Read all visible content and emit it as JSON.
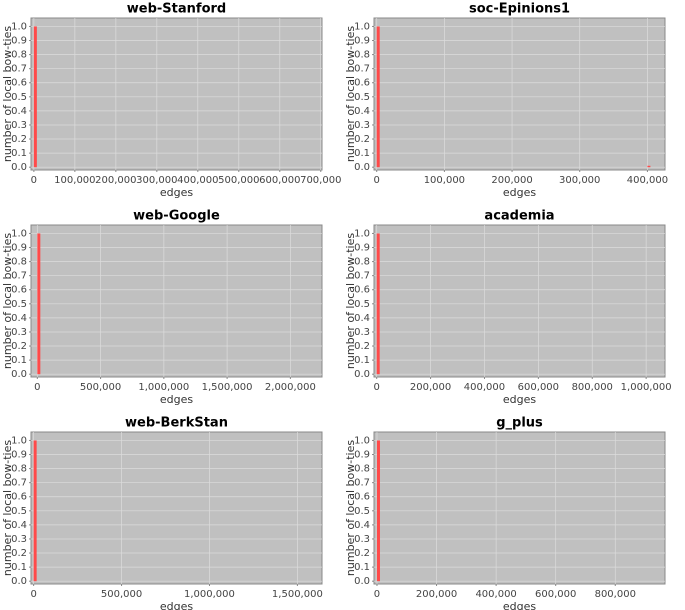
{
  "chart_data": [
    {
      "type": "bar",
      "title": "web-Stanford",
      "x_label": "edges",
      "y_label": "number of local bow-ties",
      "color": "#ff4a4a",
      "grid": true,
      "x": [
        0
      ],
      "values": [
        1.0
      ],
      "xlim": [
        -7000,
        703000
      ],
      "xticks": [
        0,
        {
          "value": 100000,
          "label": "100,000"
        },
        {
          "value": 200000,
          "label": "200,000"
        },
        {
          "value": 300000,
          "label": "300,000"
        },
        {
          "value": 400000,
          "label": "400,000"
        },
        {
          "value": 500000,
          "label": "500,000"
        },
        {
          "value": 600000,
          "label": "600,000"
        },
        {
          "value": 700000,
          "label": "700,000"
        }
      ],
      "ylim": [
        -0.02,
        1.06
      ],
      "yticks": [
        {
          "value": 0,
          "label": "0.0"
        },
        0.1,
        0.2,
        0.3,
        0.4,
        0.5,
        0.6,
        0.7,
        0.8,
        0.9,
        {
          "value": 1,
          "label": "1.0"
        }
      ]
    },
    {
      "type": "bar",
      "title": "soc-Epinions1",
      "x_label": "edges",
      "y_label": "number of local bow-ties",
      "color": "#ff4a4a",
      "grid": true,
      "x": [
        0,
        400000
      ],
      "values": [
        1.0,
        0.01
      ],
      "xlim": [
        -4000,
        426000
      ],
      "xticks": [
        0,
        {
          "value": 100000,
          "label": "100,000"
        },
        {
          "value": 200000,
          "label": "200,000"
        },
        {
          "value": 300000,
          "label": "300,000"
        },
        {
          "value": 400000,
          "label": "400,000"
        }
      ],
      "ylim": [
        -0.02,
        1.06
      ],
      "yticks": [
        {
          "value": 0,
          "label": "0.0"
        },
        0.1,
        0.2,
        0.3,
        0.4,
        0.5,
        0.6,
        0.7,
        0.8,
        0.9,
        {
          "value": 1,
          "label": "1.0"
        }
      ]
    },
    {
      "type": "bar",
      "title": "web-Google",
      "x_label": "edges",
      "y_label": "number of local bow-ties",
      "color": "#ff4a4a",
      "grid": true,
      "x": [
        0
      ],
      "values": [
        1.0
      ],
      "xlim": [
        -50000,
        2250000
      ],
      "xticks": [
        0,
        {
          "value": 500000,
          "label": "500,000"
        },
        {
          "value": 1000000,
          "label": "1,000,000"
        },
        {
          "value": 1500000,
          "label": "1,500,000"
        },
        {
          "value": 2000000,
          "label": "2,000,000"
        }
      ],
      "ylim": [
        -0.02,
        1.06
      ],
      "yticks": [
        {
          "value": 0,
          "label": "0.0"
        },
        0.1,
        0.2,
        0.3,
        0.4,
        0.5,
        0.6,
        0.7,
        0.8,
        0.9,
        {
          "value": 1,
          "label": "1.0"
        }
      ]
    },
    {
      "type": "bar",
      "title": "academia",
      "x_label": "edges",
      "y_label": "number of local bow-ties",
      "color": "#ff4a4a",
      "grid": true,
      "x": [
        0
      ],
      "values": [
        1.0
      ],
      "xlim": [
        -10000,
        1070000
      ],
      "xticks": [
        0,
        {
          "value": 200000,
          "label": "200,000"
        },
        {
          "value": 400000,
          "label": "400,000"
        },
        {
          "value": 600000,
          "label": "600,000"
        },
        {
          "value": 800000,
          "label": "800,000"
        },
        {
          "value": 1000000,
          "label": "1,000,000"
        }
      ],
      "ylim": [
        -0.02,
        1.06
      ],
      "yticks": [
        {
          "value": 0,
          "label": "0.0"
        },
        0.1,
        0.2,
        0.3,
        0.4,
        0.5,
        0.6,
        0.7,
        0.8,
        0.9,
        {
          "value": 1,
          "label": "1.0"
        }
      ]
    },
    {
      "type": "bar",
      "title": "web-BerkStan",
      "x_label": "edges",
      "y_label": "number of local bow-ties",
      "color": "#ff4a4a",
      "grid": true,
      "x": [
        0
      ],
      "values": [
        1.0
      ],
      "xlim": [
        -15000,
        1640000
      ],
      "xticks": [
        0,
        {
          "value": 500000,
          "label": "500,000"
        },
        {
          "value": 1000000,
          "label": "1,000,000"
        },
        {
          "value": 1500000,
          "label": "1,500,000"
        }
      ],
      "ylim": [
        -0.02,
        1.06
      ],
      "yticks": [
        {
          "value": 0,
          "label": "0.0"
        },
        0.1,
        0.2,
        0.3,
        0.4,
        0.5,
        0.6,
        0.7,
        0.8,
        0.9,
        {
          "value": 1,
          "label": "1.0"
        }
      ]
    },
    {
      "type": "bar",
      "title": "g_plus",
      "x_label": "edges",
      "y_label": "number of local bow-ties",
      "color": "#ff4a4a",
      "grid": true,
      "x": [
        0
      ],
      "values": [
        1.0
      ],
      "xlim": [
        -10000,
        967000
      ],
      "xticks": [
        0,
        {
          "value": 200000,
          "label": "200,000"
        },
        {
          "value": 400000,
          "label": "400,000"
        },
        {
          "value": 600000,
          "label": "600,000"
        },
        {
          "value": 800000,
          "label": "800,000"
        }
      ],
      "ylim": [
        -0.02,
        1.06
      ],
      "yticks": [
        {
          "value": 0,
          "label": "0.0"
        },
        0.1,
        0.2,
        0.3,
        0.4,
        0.5,
        0.6,
        0.7,
        0.8,
        0.9,
        {
          "value": 1,
          "label": "1.0"
        }
      ]
    }
  ]
}
